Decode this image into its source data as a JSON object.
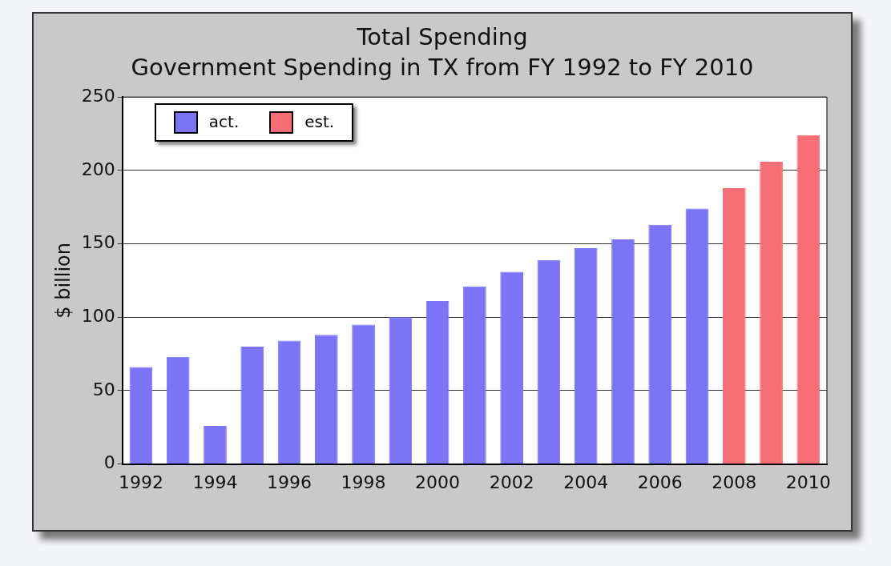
{
  "chart_data": {
    "type": "bar",
    "title": "Total Spending",
    "subtitle": "Government Spending in TX from FY 1992 to FY 2010",
    "ylabel": "$ billion",
    "categories": [
      "1992",
      null,
      "1994",
      null,
      "1996",
      null,
      "1998",
      null,
      "2000",
      null,
      "2002",
      null,
      "2004",
      null,
      "2006",
      null,
      "2008",
      null,
      "2010"
    ],
    "series": [
      {
        "name": "act.",
        "color": "#7b74f7",
        "values": [
          66,
          73,
          26,
          80,
          84,
          88,
          95,
          100,
          111,
          121,
          131,
          139,
          147,
          153,
          163,
          174,
          null,
          null,
          null
        ]
      },
      {
        "name": "est.",
        "color": "#f76f74",
        "values": [
          null,
          null,
          null,
          null,
          null,
          null,
          null,
          null,
          null,
          null,
          null,
          null,
          null,
          null,
          null,
          null,
          188,
          206,
          224
        ]
      }
    ],
    "ylim": [
      0,
      250
    ],
    "yticks": [
      0,
      50,
      100,
      150,
      200,
      250
    ],
    "grid": "y",
    "legend": "top left"
  }
}
